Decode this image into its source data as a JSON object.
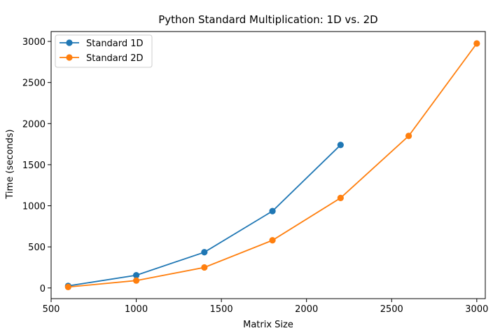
{
  "chart_data": {
    "type": "line",
    "title": "Python Standard Multiplication: 1D vs. 2D",
    "xlabel": "Matrix Size",
    "ylabel": "Time (seconds)",
    "xlim": [
      500,
      3050
    ],
    "ylim": [
      -130,
      3120
    ],
    "xticks": [
      500,
      1000,
      1500,
      2000,
      2500,
      3000
    ],
    "yticks": [
      0,
      500,
      1000,
      1500,
      2000,
      2500,
      3000
    ],
    "grid": false,
    "legend_position": "top-left",
    "series": [
      {
        "name": "Standard 1D",
        "color": "#1f77b4",
        "marker": "circle",
        "x": [
          600,
          1000,
          1400,
          1800,
          2200
        ],
        "y": [
          25,
          155,
          435,
          935,
          1740
        ]
      },
      {
        "name": "Standard 2D",
        "color": "#ff7f0e",
        "marker": "circle",
        "x": [
          600,
          1000,
          1400,
          1800,
          2200,
          2600,
          3000
        ],
        "y": [
          12,
          90,
          250,
          580,
          1095,
          1850,
          2975
        ]
      }
    ]
  }
}
